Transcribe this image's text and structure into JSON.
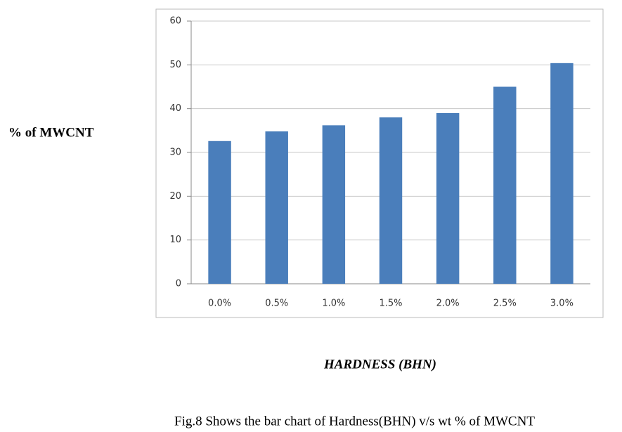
{
  "chart_data": {
    "type": "bar",
    "categories": [
      "0.0%",
      "0.5%",
      "1.0%",
      "1.5%",
      "2.0%",
      "2.5%",
      "3.0%"
    ],
    "values": [
      32.6,
      34.8,
      36.2,
      38,
      39,
      45,
      50.4
    ],
    "color": "#4a7ebb",
    "ylim": [
      0,
      60
    ],
    "yticks": [
      0,
      10,
      20,
      30,
      40,
      50,
      60
    ],
    "grid": true,
    "y_label": "% of MWCNT",
    "x_label": "HARDNESS (BHN)",
    "caption": "Fig.8 Shows the bar chart of Hardness(BHN) v/s wt % of MWCNT"
  }
}
